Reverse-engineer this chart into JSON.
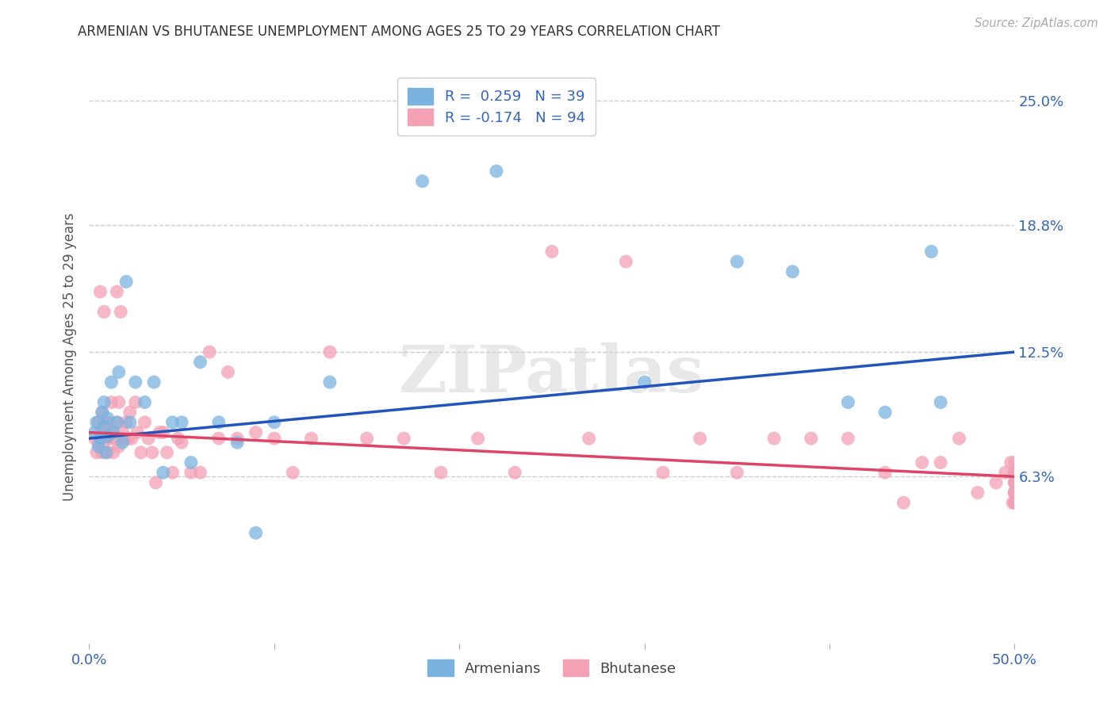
{
  "title": "ARMENIAN VS BHUTANESE UNEMPLOYMENT AMONG AGES 25 TO 29 YEARS CORRELATION CHART",
  "source": "Source: ZipAtlas.com",
  "ylabel": "Unemployment Among Ages 25 to 29 years",
  "xlim": [
    0.0,
    0.5
  ],
  "ylim": [
    -0.02,
    0.265
  ],
  "ytick_labels_right": [
    "6.3%",
    "12.5%",
    "18.8%",
    "25.0%"
  ],
  "yticks_right": [
    0.063,
    0.125,
    0.188,
    0.25
  ],
  "armenian_color": "#7ab3e0",
  "bhutanese_color": "#f4a0b5",
  "armenian_line_color": "#2255bb",
  "bhutanese_line_color": "#dd4466",
  "R_armenian": 0.259,
  "N_armenian": 39,
  "R_bhutanese": -0.174,
  "N_bhutanese": 94,
  "arm_line_x": [
    0.0,
    0.5
  ],
  "arm_line_y": [
    0.082,
    0.125
  ],
  "bhu_line_x": [
    0.0,
    0.5
  ],
  "bhu_line_y": [
    0.085,
    0.063
  ],
  "background_color": "#ffffff",
  "armenian_x": [
    0.003,
    0.004,
    0.005,
    0.006,
    0.007,
    0.008,
    0.008,
    0.009,
    0.01,
    0.01,
    0.012,
    0.013,
    0.015,
    0.016,
    0.018,
    0.02,
    0.022,
    0.025,
    0.03,
    0.035,
    0.04,
    0.045,
    0.05,
    0.055,
    0.06,
    0.07,
    0.08,
    0.09,
    0.1,
    0.13,
    0.18,
    0.22,
    0.3,
    0.35,
    0.38,
    0.41,
    0.43,
    0.455,
    0.46
  ],
  "armenian_y": [
    0.085,
    0.09,
    0.078,
    0.082,
    0.095,
    0.088,
    0.1,
    0.075,
    0.083,
    0.092,
    0.11,
    0.085,
    0.09,
    0.115,
    0.08,
    0.16,
    0.09,
    0.11,
    0.1,
    0.11,
    0.065,
    0.09,
    0.09,
    0.07,
    0.12,
    0.09,
    0.08,
    0.035,
    0.09,
    0.11,
    0.21,
    0.215,
    0.11,
    0.17,
    0.165,
    0.1,
    0.095,
    0.175,
    0.1
  ],
  "bhutanese_x": [
    0.003,
    0.004,
    0.005,
    0.005,
    0.006,
    0.006,
    0.007,
    0.007,
    0.008,
    0.008,
    0.009,
    0.009,
    0.01,
    0.01,
    0.011,
    0.012,
    0.012,
    0.013,
    0.014,
    0.015,
    0.015,
    0.016,
    0.016,
    0.017,
    0.018,
    0.019,
    0.02,
    0.021,
    0.022,
    0.023,
    0.025,
    0.026,
    0.028,
    0.03,
    0.032,
    0.034,
    0.036,
    0.038,
    0.04,
    0.042,
    0.045,
    0.048,
    0.05,
    0.055,
    0.06,
    0.065,
    0.07,
    0.075,
    0.08,
    0.09,
    0.1,
    0.11,
    0.12,
    0.13,
    0.15,
    0.17,
    0.19,
    0.21,
    0.23,
    0.25,
    0.27,
    0.29,
    0.31,
    0.33,
    0.35,
    0.37,
    0.39,
    0.41,
    0.43,
    0.44,
    0.45,
    0.46,
    0.47,
    0.48,
    0.49,
    0.495,
    0.498,
    0.499,
    0.5,
    0.5,
    0.5,
    0.5,
    0.5,
    0.5,
    0.5,
    0.5,
    0.5,
    0.5,
    0.5,
    0.5,
    0.5,
    0.5,
    0.5,
    0.5
  ],
  "bhutanese_y": [
    0.082,
    0.075,
    0.08,
    0.09,
    0.085,
    0.155,
    0.075,
    0.095,
    0.08,
    0.145,
    0.083,
    0.088,
    0.09,
    0.075,
    0.082,
    0.085,
    0.1,
    0.075,
    0.082,
    0.09,
    0.155,
    0.1,
    0.078,
    0.145,
    0.085,
    0.082,
    0.09,
    0.082,
    0.095,
    0.082,
    0.1,
    0.085,
    0.075,
    0.09,
    0.082,
    0.075,
    0.06,
    0.085,
    0.085,
    0.075,
    0.065,
    0.082,
    0.08,
    0.065,
    0.065,
    0.125,
    0.082,
    0.115,
    0.082,
    0.085,
    0.082,
    0.065,
    0.082,
    0.125,
    0.082,
    0.082,
    0.065,
    0.082,
    0.065,
    0.175,
    0.082,
    0.17,
    0.065,
    0.082,
    0.065,
    0.082,
    0.082,
    0.082,
    0.065,
    0.05,
    0.07,
    0.07,
    0.082,
    0.055,
    0.06,
    0.065,
    0.07,
    0.05,
    0.065,
    0.06,
    0.05,
    0.055,
    0.06,
    0.055,
    0.05,
    0.065,
    0.07,
    0.055,
    0.065,
    0.065,
    0.055,
    0.06,
    0.05,
    0.055
  ]
}
